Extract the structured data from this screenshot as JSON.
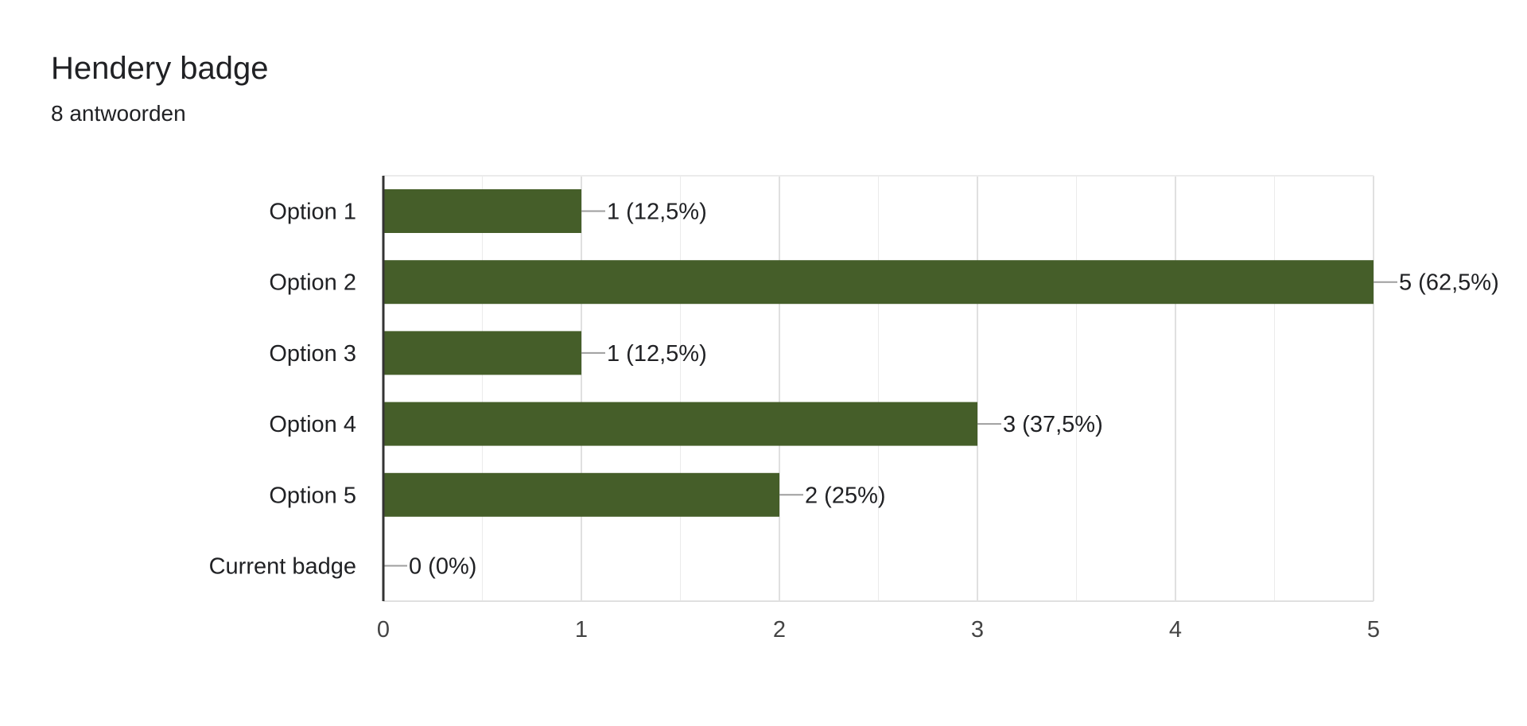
{
  "header": {
    "title": "Hendery badge",
    "subtitle": "8 antwoorden"
  },
  "colors": {
    "bar": "#455e29",
    "gridline": "#ebebeb",
    "baseline": "#333333",
    "leader": "#9e9e9e",
    "text": "#202124",
    "tick_text": "#444444"
  },
  "chart_data": {
    "type": "bar",
    "orientation": "horizontal",
    "title": "Hendery badge",
    "subtitle": "8 antwoorden",
    "categories": [
      "Option 1",
      "Option 2",
      "Option 3",
      "Option 4",
      "Option 5",
      "Current badge"
    ],
    "values": [
      1,
      5,
      1,
      3,
      2,
      0
    ],
    "data_labels": [
      "1 (12,5%)",
      "5 (62,5%)",
      "1 (12,5%)",
      "3 (37,5%)",
      "2 (25%)",
      "0 (0%)"
    ],
    "xlim": [
      0,
      5
    ],
    "xticks": [
      0,
      1,
      2,
      3,
      4,
      5
    ],
    "minor_gridlines": [
      0.5,
      1.5,
      2.5,
      3.5,
      4.5
    ],
    "grid": true,
    "legend": "none"
  }
}
